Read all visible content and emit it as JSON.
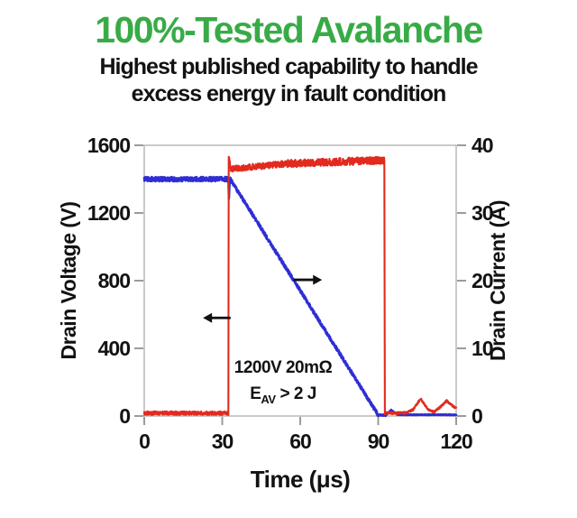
{
  "header": {
    "title": "100%-Tested Avalanche",
    "title_color": "#38ab47",
    "subtitle_line1": "Highest published capability to handle",
    "subtitle_line2": "excess energy in fault condition"
  },
  "chart_data": {
    "type": "line",
    "xlabel": "Time (μs)",
    "ylabel_left": "Drain Voltage (V)",
    "ylabel_right": "Drain Current (A)",
    "xlim": [
      0,
      120
    ],
    "xticks": [
      0,
      30,
      60,
      90,
      120
    ],
    "ylim_left": [
      0,
      1600
    ],
    "yticks_left": [
      0,
      400,
      800,
      1200,
      1600
    ],
    "ylim_right": [
      0,
      40
    ],
    "yticks_right": [
      0,
      10,
      20,
      30,
      40
    ],
    "grid": false,
    "legend": "none",
    "frame_color": "#bcbcbc",
    "tick_color": "#9b9b9b",
    "annotation": {
      "line1": "1200V 20mΩ",
      "e_symbol": "E",
      "e_subscript": "AV",
      "e_rest": "> 2 J"
    },
    "series": [
      {
        "name": "Drain Voltage",
        "axis": "left",
        "color": "#2e2ed4",
        "description": "Flat ~1400 V from 0 to ~32 μs, brief dip at turn-off, linear avalanche ramp down to 0 V at ~90 μs, then ~0 V",
        "segments": [
          [
            0,
            1400,
            32.4,
            1400,
            13,
            false
          ],
          [
            32.4,
            1400,
            32.55,
            1285,
            2,
            false
          ],
          [
            32.55,
            1285,
            32.9,
            1408,
            2,
            false
          ],
          [
            32.9,
            1405,
            90,
            6,
            10,
            false
          ],
          [
            90,
            6,
            93,
            4,
            4,
            false
          ],
          [
            93,
            4,
            95,
            32,
            5,
            true
          ],
          [
            95,
            32,
            97.5,
            6,
            4,
            true
          ],
          [
            97.5,
            6,
            120,
            5,
            4,
            true
          ]
        ]
      },
      {
        "name": "Drain Current",
        "axis": "right",
        "color": "#e22a1e",
        "description": "~0 A until ~32 μs, steps up to ~37-38 A avalanche plateau, drops to 0 A at ~92.5 μs, small ringing bumps ~2.5 A near 107 and 116 μs",
        "segments": [
          [
            0,
            0.15,
            32.35,
            0.15,
            0.55,
            true
          ],
          [
            32.35,
            0.15,
            32.5,
            38.3,
            0,
            false
          ],
          [
            32.5,
            38.3,
            33.3,
            36.5,
            0.3,
            false
          ],
          [
            33.3,
            36.5,
            55,
            37.3,
            0.45,
            false
          ],
          [
            55,
            37.3,
            92.35,
            37.8,
            0.55,
            false
          ],
          [
            92.35,
            37.8,
            92.55,
            0.25,
            0,
            false
          ],
          [
            92.55,
            0.25,
            100.5,
            0.3,
            0.35,
            true
          ],
          [
            100.5,
            0.3,
            103.5,
            0.8,
            0.3,
            true
          ],
          [
            103.5,
            0.8,
            106.3,
            2.4,
            0.3,
            true
          ],
          [
            106.3,
            2.4,
            109,
            0.9,
            0.3,
            true
          ],
          [
            109,
            0.9,
            111.5,
            0.45,
            0.25,
            true
          ],
          [
            111.5,
            0.45,
            114,
            1.2,
            0.3,
            true
          ],
          [
            114,
            1.2,
            116.3,
            2.1,
            0.3,
            true
          ],
          [
            116.3,
            2.1,
            118.5,
            1.4,
            0.3,
            true
          ],
          [
            118.5,
            1.4,
            120,
            1.0,
            0.25,
            true
          ]
        ]
      }
    ],
    "arrows": [
      {
        "name": "voltage-axis-arrow",
        "direction": "left",
        "t_tail": 33.2,
        "t_head": 22.6,
        "value": 580,
        "axis": "left"
      },
      {
        "name": "current-axis-arrow",
        "direction": "right",
        "t_tail": 57.4,
        "t_head": 68.4,
        "value": 805,
        "axis": "left"
      }
    ]
  }
}
